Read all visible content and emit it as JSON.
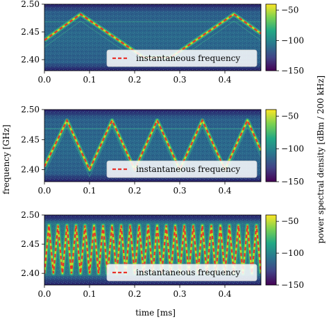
{
  "figure": {
    "xlabel": "time [ms]",
    "ylabel": "frequency [GHz]",
    "colorbar_label": "power spectral density [dBm / 200 kHz]"
  },
  "colors": {
    "background_low": "#2d1a6b",
    "noise_mid": "#2b6f8e",
    "signal": "#35b779",
    "signal_bright": "#bddf26",
    "inst_freq": "#e8312a"
  },
  "chart_data": [
    {
      "type": "heatmap",
      "panel": "top",
      "xlim": [
        0.0,
        0.48
      ],
      "ylim": [
        2.38,
        2.5
      ],
      "x_ticks": [
        "0.0",
        "0.1",
        "0.2",
        "0.3",
        "0.4"
      ],
      "y_ticks": [
        "2.40",
        "2.45",
        "2.50"
      ],
      "colorbar": {
        "min": -150,
        "max": -40,
        "ticks": [
          "−50",
          "−100",
          "−150"
        ]
      },
      "series": [
        {
          "name": "instantaneous frequency",
          "x": [
            0.0,
            0.08,
            0.22,
            0.28,
            0.42,
            0.48
          ],
          "y": [
            2.435,
            2.482,
            2.404,
            2.404,
            2.482,
            2.447
          ]
        }
      ],
      "legend": {
        "label": "instantaneous frequency",
        "position": "lower-right"
      }
    },
    {
      "type": "heatmap",
      "panel": "middle",
      "xlim": [
        0.0,
        0.48
      ],
      "ylim": [
        2.38,
        2.5
      ],
      "x_ticks": [
        "0.0",
        "0.1",
        "0.2",
        "0.3",
        "0.4"
      ],
      "y_ticks": [
        "2.40",
        "2.45",
        "2.50"
      ],
      "colorbar": {
        "min": -150,
        "max": -40,
        "ticks": [
          "−50",
          "−100",
          "−150"
        ]
      },
      "series": [
        {
          "name": "instantaneous frequency",
          "x": [
            0.0,
            0.05,
            0.1,
            0.15,
            0.2,
            0.25,
            0.3,
            0.35,
            0.4,
            0.45,
            0.48
          ],
          "y": [
            2.405,
            2.482,
            2.4,
            2.482,
            2.4,
            2.482,
            2.4,
            2.482,
            2.4,
            2.482,
            2.432
          ]
        }
      ],
      "legend": {
        "label": "instantaneous frequency",
        "position": "lower-right"
      }
    },
    {
      "type": "heatmap",
      "panel": "bottom",
      "xlim": [
        0.0,
        0.48
      ],
      "ylim": [
        2.38,
        2.5
      ],
      "x_ticks": [
        "0.0",
        "0.1",
        "0.2",
        "0.3",
        "0.4"
      ],
      "y_ticks": [
        "2.40",
        "2.45",
        "2.50"
      ],
      "colorbar": {
        "min": -150,
        "max": -40,
        "ticks": [
          "−50",
          "−100",
          "−150"
        ]
      },
      "series": [
        {
          "name": "instantaneous frequency",
          "sweep_period": 0.02,
          "y_min": 2.4,
          "y_max": 2.482
        }
      ],
      "legend": {
        "label": "instantaneous frequency",
        "position": "lower-right"
      }
    }
  ]
}
